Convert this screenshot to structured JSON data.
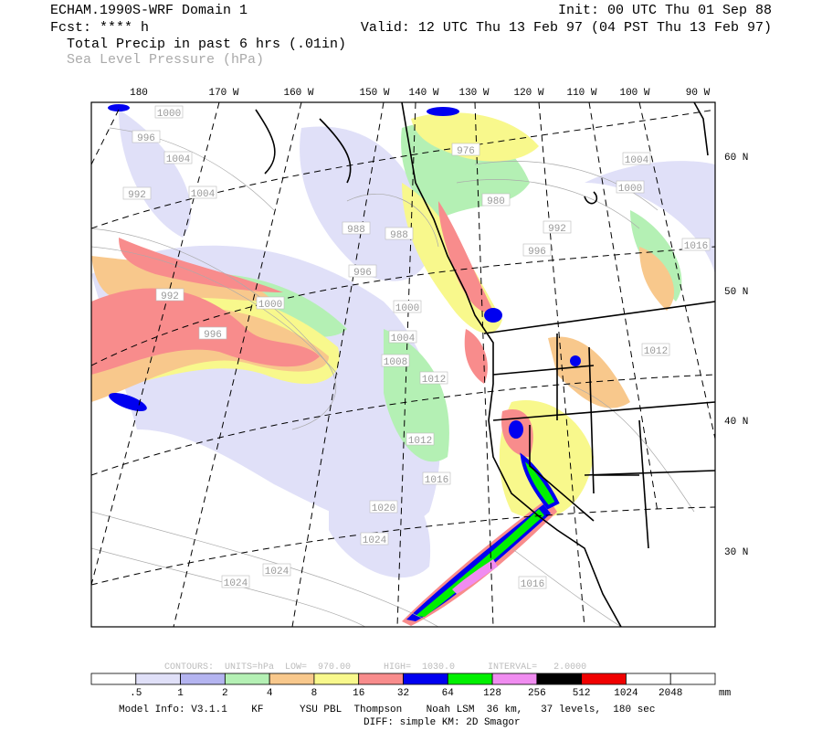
{
  "header": {
    "model": "ECHAM.1990S-WRF Domain 1",
    "fcst": "Fcst: **** h",
    "init": "Init: 00 UTC Thu 01 Sep 88",
    "valid": "Valid: 12 UTC Thu 13 Feb 97 (04 PST Thu 13 Feb 97)",
    "field1": "Total Precip in past 6 hrs (.01in)",
    "field2": "Sea Level Pressure (hPa)"
  },
  "lon_labels": [
    "180",
    "170 W",
    "160 W",
    "150 W",
    "140 W",
    "130 W",
    "120 W",
    "110 W",
    "100 W",
    "90 W"
  ],
  "lat_labels": [
    "60 N",
    "50 N",
    "40 N",
    "30 N"
  ],
  "contour_labels": [
    "1000",
    "996",
    "1004",
    "1004",
    "992",
    "992",
    "1000",
    "996",
    "976",
    "980",
    "992",
    "996",
    "1004",
    "1000",
    "1016",
    "988",
    "988",
    "996",
    "1000",
    "1004",
    "1008",
    "1012",
    "1012",
    "1016",
    "1020",
    "1024",
    "1016",
    "1024",
    "1024",
    "1012"
  ],
  "contours_info": "CONTOURS:  UNITS=hPa  LOW=  970.00      HIGH=  1030.0      INTERVAL=   2.0000",
  "colorbar": {
    "labels": [
      ".5",
      "1",
      "2",
      "4",
      "8",
      "16",
      "32",
      "64",
      "128",
      "256",
      "512",
      "1024",
      "2048"
    ],
    "units": "mm",
    "colors": [
      "#ffffff",
      "#e0e0f8",
      "#b4b4f0",
      "#b4f0b4",
      "#f8c88c",
      "#f8f88c",
      "#f88c8c",
      "#0000f0",
      "#00f000",
      "#f08cf0",
      "#000000",
      "#f00000",
      "#ffffff",
      "#ffffff"
    ]
  },
  "footer": {
    "line1": "Model Info: V3.1.1    KF      YSU PBL  Thompson    Noah LSM  36 km,   37 levels,  180 sec",
    "line2": "DIFF: simple KM: 2D Smagor"
  }
}
